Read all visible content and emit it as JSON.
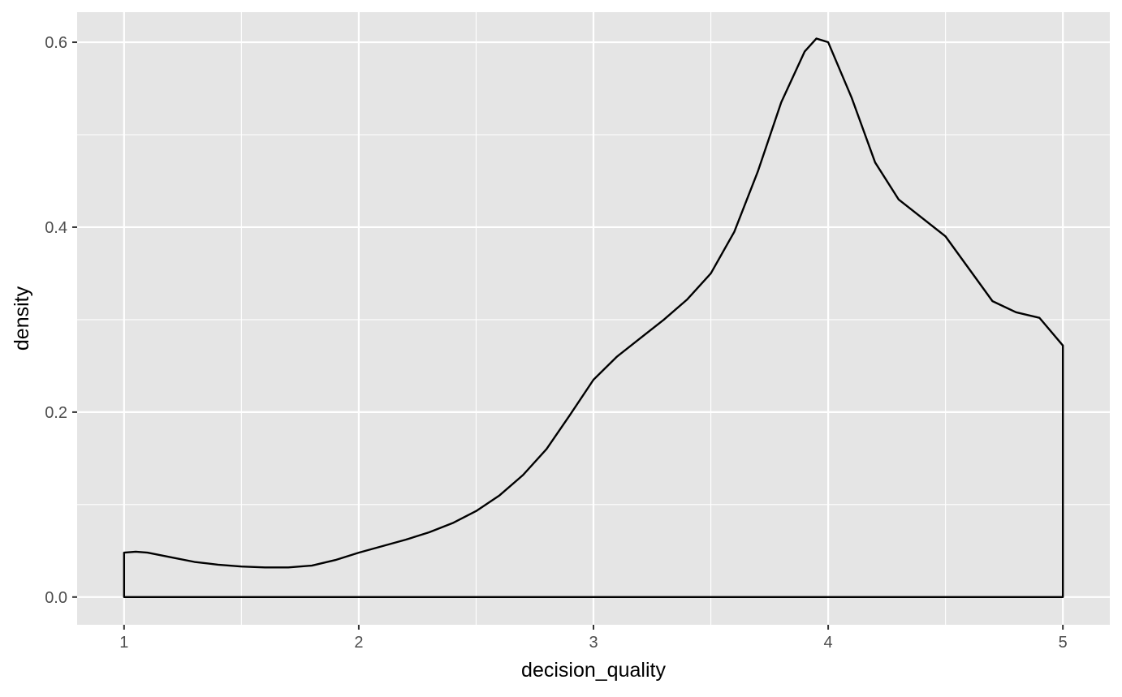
{
  "chart_data": {
    "type": "area",
    "title": "",
    "xlabel": "decision_quality",
    "ylabel": "density",
    "xlim": [
      0.8,
      5.2
    ],
    "ylim": [
      -0.03,
      0.6325
    ],
    "x_ticks": [
      "1",
      "2",
      "3",
      "4",
      "5"
    ],
    "y_ticks": [
      "0.0",
      "0.2",
      "0.4",
      "0.6"
    ],
    "x_tick_values": [
      1,
      2,
      3,
      4,
      5
    ],
    "y_tick_values": [
      0.0,
      0.2,
      0.4,
      0.6
    ],
    "x_minor_values": [
      1.5,
      2.5,
      3.5,
      4.5
    ],
    "y_minor_values": [
      0.1,
      0.3,
      0.5
    ],
    "grid": true,
    "legend": "none",
    "colors": {
      "panel_background": "#e5e5e5",
      "grid_line": "#ffffff",
      "curve": "#000000",
      "fill": "none",
      "tick_label": "#4d4d4d",
      "axis_title": "#000000"
    },
    "series": [
      {
        "x": [
          1.0,
          1.05,
          1.1,
          1.2,
          1.3,
          1.4,
          1.5,
          1.6,
          1.7,
          1.8,
          1.9,
          2.0,
          2.1,
          2.2,
          2.3,
          2.4,
          2.5,
          2.6,
          2.7,
          2.8,
          2.9,
          3.0,
          3.1,
          3.2,
          3.3,
          3.4,
          3.5,
          3.6,
          3.7,
          3.8,
          3.9,
          3.95,
          4.0,
          4.1,
          4.2,
          4.3,
          4.4,
          4.5,
          4.6,
          4.7,
          4.8,
          4.9,
          5.0
        ],
        "y": [
          0.048,
          0.049,
          0.048,
          0.043,
          0.038,
          0.035,
          0.033,
          0.032,
          0.032,
          0.034,
          0.04,
          0.048,
          0.055,
          0.062,
          0.07,
          0.08,
          0.093,
          0.11,
          0.132,
          0.16,
          0.197,
          0.235,
          0.26,
          0.28,
          0.3,
          0.322,
          0.35,
          0.395,
          0.46,
          0.535,
          0.59,
          0.604,
          0.6,
          0.54,
          0.47,
          0.43,
          0.41,
          0.39,
          0.355,
          0.32,
          0.308,
          0.302,
          0.272
        ]
      }
    ]
  }
}
